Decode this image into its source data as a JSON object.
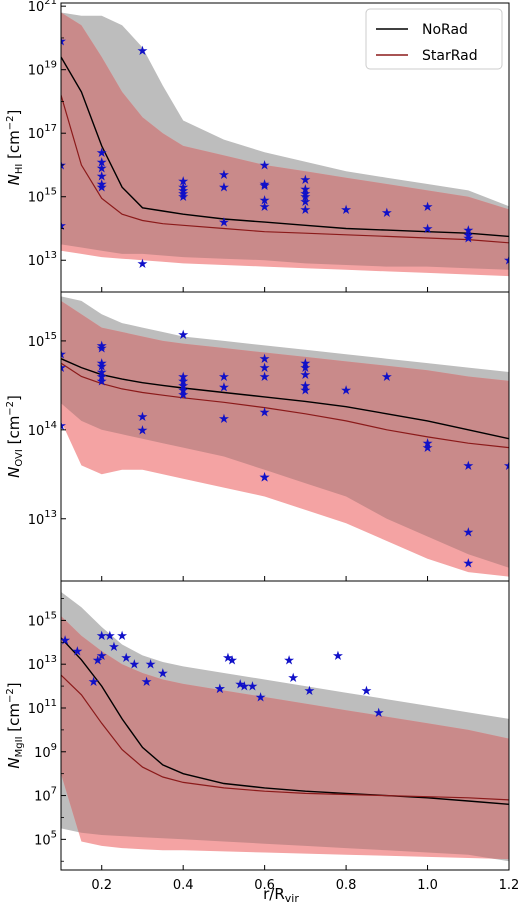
{
  "figure": {
    "xlabel_main": "r/R",
    "xlabel_sub": "vir",
    "legend": [
      {
        "label": "NoRad",
        "color": "#000000"
      },
      {
        "label": "StarRad",
        "color": "#8b1a1a"
      }
    ]
  },
  "colors": {
    "norad_band": "#bdbdbd",
    "starrad_band": "#f4a3a3",
    "overlap_band": "#c98a8a",
    "norad_line": "#000000",
    "starrad_line": "#8b1a1a",
    "obs_star": "#1010c8"
  },
  "chart_data": [
    {
      "type": "area",
      "ylabel_main": "N",
      "ylabel_sub": "HI",
      "ylabel_unit": " [cm",
      "ylabel_exp": "−2",
      "yscale": "log",
      "xlim": [
        0.1,
        1.2
      ],
      "ylim_log10": [
        12.0,
        21.1
      ],
      "yticks": [
        {
          "base": "10",
          "exp": "13",
          "log": 13
        },
        {
          "base": "10",
          "exp": "15",
          "log": 15
        },
        {
          "base": "10",
          "exp": "17",
          "log": 17
        },
        {
          "base": "10",
          "exp": "19",
          "log": 19
        },
        {
          "base": "10",
          "exp": "21",
          "log": 21
        }
      ],
      "x": [
        0.1,
        0.15,
        0.2,
        0.25,
        0.3,
        0.35,
        0.4,
        0.5,
        0.6,
        0.7,
        0.8,
        0.9,
        1.0,
        1.1,
        1.2
      ],
      "series": [
        {
          "name": "NoRad",
          "median_log10": [
            19.4,
            18.3,
            16.6,
            15.3,
            14.65,
            14.55,
            14.45,
            14.3,
            14.2,
            14.1,
            14.0,
            13.95,
            13.9,
            13.85,
            13.75
          ],
          "low_log10": [
            13.5,
            13.4,
            13.3,
            13.2,
            13.2,
            13.15,
            13.1,
            13.05,
            13.0,
            12.9,
            12.85,
            12.8,
            12.8,
            12.75,
            12.7
          ],
          "high_log10": [
            20.8,
            20.7,
            20.7,
            20.4,
            19.7,
            18.5,
            17.4,
            16.8,
            16.4,
            16.1,
            15.8,
            15.6,
            15.4,
            15.2,
            14.7
          ]
        },
        {
          "name": "StarRad",
          "median_log10": [
            18.2,
            16.0,
            14.95,
            14.45,
            14.25,
            14.15,
            14.1,
            14.0,
            13.9,
            13.85,
            13.8,
            13.75,
            13.7,
            13.65,
            13.55
          ],
          "low_log10": [
            13.3,
            13.2,
            13.1,
            13.05,
            13.0,
            12.95,
            12.9,
            12.85,
            12.8,
            12.75,
            12.7,
            12.65,
            12.6,
            12.55,
            12.5
          ],
          "high_log10": [
            20.8,
            20.4,
            19.4,
            18.3,
            17.5,
            17.0,
            16.6,
            16.3,
            16.0,
            15.8,
            15.6,
            15.4,
            15.2,
            15.0,
            14.6
          ]
        }
      ],
      "observations": {
        "x": [
          0.1,
          0.1,
          0.1,
          0.2,
          0.2,
          0.2,
          0.2,
          0.2,
          0.2,
          0.3,
          0.3,
          0.4,
          0.4,
          0.4,
          0.4,
          0.4,
          0.5,
          0.5,
          0.5,
          0.6,
          0.6,
          0.6,
          0.6,
          0.6,
          0.7,
          0.7,
          0.7,
          0.7,
          0.7,
          0.7,
          0.8,
          0.9,
          1.0,
          1.0,
          1.1,
          1.1,
          1.1,
          1.2
        ],
        "y_log10": [
          19.9,
          16.0,
          14.1,
          16.4,
          16.1,
          15.9,
          15.65,
          15.4,
          15.3,
          19.6,
          12.9,
          15.5,
          15.3,
          15.2,
          15.1,
          15.0,
          15.7,
          15.3,
          14.2,
          16.0,
          15.4,
          15.35,
          14.9,
          14.7,
          15.55,
          15.25,
          15.1,
          15.0,
          14.85,
          14.6,
          14.6,
          14.5,
          14.7,
          14.0,
          13.95,
          13.8,
          13.7,
          13.0
        ]
      }
    },
    {
      "type": "area",
      "ylabel_main": "N",
      "ylabel_sub": "OVI",
      "ylabel_unit": " [cm",
      "ylabel_exp": "−2",
      "yscale": "log",
      "xlim": [
        0.1,
        1.2
      ],
      "ylim_log10": [
        12.3,
        15.55
      ],
      "yticks": [
        {
          "base": "10",
          "exp": "13",
          "log": 13
        },
        {
          "base": "10",
          "exp": "14",
          "log": 14
        },
        {
          "base": "10",
          "exp": "15",
          "log": 15
        }
      ],
      "x": [
        0.1,
        0.15,
        0.2,
        0.25,
        0.3,
        0.35,
        0.4,
        0.5,
        0.6,
        0.7,
        0.8,
        0.9,
        1.0,
        1.1,
        1.2
      ],
      "series": [
        {
          "name": "NoRad",
          "median_log10": [
            14.8,
            14.7,
            14.62,
            14.57,
            14.53,
            14.5,
            14.47,
            14.42,
            14.37,
            14.32,
            14.26,
            14.18,
            14.1,
            14.0,
            13.9
          ],
          "low_log10": [
            14.3,
            14.1,
            14.0,
            13.95,
            13.9,
            13.85,
            13.8,
            13.7,
            13.55,
            13.4,
            13.25,
            13.0,
            12.8,
            12.6,
            12.45
          ],
          "high_log10": [
            15.5,
            15.45,
            15.3,
            15.2,
            15.15,
            15.1,
            15.05,
            15.0,
            14.95,
            14.9,
            14.85,
            14.8,
            14.75,
            14.7,
            14.65
          ]
        },
        {
          "name": "StarRad",
          "median_log10": [
            14.75,
            14.6,
            14.52,
            14.46,
            14.42,
            14.39,
            14.36,
            14.31,
            14.25,
            14.18,
            14.1,
            14.0,
            13.92,
            13.85,
            13.8
          ],
          "low_log10": [
            14.1,
            13.6,
            13.5,
            13.55,
            13.55,
            13.5,
            13.45,
            13.35,
            13.25,
            13.1,
            12.95,
            12.75,
            12.55,
            12.4,
            12.35
          ],
          "high_log10": [
            15.45,
            15.3,
            15.15,
            15.1,
            15.05,
            15.0,
            14.97,
            14.92,
            14.87,
            14.82,
            14.77,
            14.72,
            14.67,
            14.6,
            14.55
          ]
        }
      ],
      "observations": {
        "x": [
          0.1,
          0.1,
          0.1,
          0.2,
          0.2,
          0.2,
          0.2,
          0.2,
          0.2,
          0.2,
          0.3,
          0.3,
          0.4,
          0.4,
          0.4,
          0.4,
          0.4,
          0.4,
          0.5,
          0.5,
          0.5,
          0.6,
          0.6,
          0.6,
          0.6,
          0.6,
          0.6,
          0.7,
          0.7,
          0.7,
          0.7,
          0.7,
          0.8,
          0.9,
          1.0,
          1.0,
          1.1,
          1.1,
          1.1,
          1.2
        ],
        "y_log10": [
          14.85,
          14.7,
          14.05,
          14.95,
          14.92,
          14.75,
          14.72,
          14.65,
          14.6,
          14.55,
          14.15,
          14.0,
          15.07,
          14.6,
          14.55,
          14.5,
          14.45,
          14.4,
          14.6,
          14.48,
          14.13,
          14.8,
          14.7,
          14.6,
          14.2,
          13.47,
          13.47,
          14.75,
          14.7,
          14.62,
          14.5,
          14.45,
          14.45,
          14.6,
          13.85,
          13.8,
          13.6,
          12.85,
          12.5,
          13.6
        ]
      }
    },
    {
      "type": "area",
      "ylabel_main": "N",
      "ylabel_sub": "MgII",
      "ylabel_unit": " [cm",
      "ylabel_exp": "−2",
      "yscale": "log",
      "xlim": [
        0.1,
        1.2
      ],
      "ylim_log10": [
        3.6,
        16.8
      ],
      "yticks": [
        {
          "base": "10",
          "exp": "5",
          "log": 5
        },
        {
          "base": "10",
          "exp": "7",
          "log": 7
        },
        {
          "base": "10",
          "exp": "9",
          "log": 9
        },
        {
          "base": "10",
          "exp": "11",
          "log": 11
        },
        {
          "base": "10",
          "exp": "13",
          "log": 13
        },
        {
          "base": "10",
          "exp": "15",
          "log": 15
        }
      ],
      "x": [
        0.1,
        0.15,
        0.2,
        0.25,
        0.3,
        0.35,
        0.4,
        0.5,
        0.6,
        0.7,
        0.8,
        0.9,
        1.0,
        1.1,
        1.2
      ],
      "series": [
        {
          "name": "NoRad",
          "median_log10": [
            14.2,
            13.2,
            12.0,
            10.5,
            9.2,
            8.4,
            8.0,
            7.55,
            7.35,
            7.2,
            7.1,
            7.0,
            6.9,
            6.75,
            6.6
          ],
          "low_log10": [
            5.5,
            5.3,
            5.2,
            5.15,
            5.1,
            5.05,
            5.0,
            4.9,
            4.8,
            4.7,
            4.6,
            4.5,
            4.4,
            4.3,
            4.0
          ],
          "high_log10": [
            16.3,
            15.6,
            14.7,
            13.9,
            13.4,
            13.1,
            12.9,
            12.6,
            12.3,
            12.0,
            11.7,
            11.4,
            11.1,
            10.8,
            10.5
          ]
        },
        {
          "name": "StarRad",
          "median_log10": [
            12.5,
            11.6,
            10.3,
            9.1,
            8.3,
            7.85,
            7.6,
            7.35,
            7.2,
            7.1,
            7.05,
            7.0,
            6.95,
            6.9,
            6.8
          ],
          "low_log10": [
            8.0,
            4.9,
            4.7,
            4.6,
            4.55,
            4.5,
            4.5,
            4.45,
            4.4,
            4.35,
            4.3,
            4.25,
            4.2,
            4.15,
            4.1
          ],
          "high_log10": [
            15.2,
            14.3,
            13.6,
            13.0,
            12.6,
            12.3,
            12.1,
            11.8,
            11.5,
            11.2,
            10.9,
            10.6,
            10.3,
            10.0,
            9.6
          ]
        }
      ],
      "observations": {
        "x": [
          0.11,
          0.14,
          0.18,
          0.19,
          0.2,
          0.2,
          0.22,
          0.23,
          0.25,
          0.26,
          0.28,
          0.31,
          0.32,
          0.35,
          0.49,
          0.49,
          0.51,
          0.52,
          0.54,
          0.55,
          0.57,
          0.59,
          0.66,
          0.67,
          0.71,
          0.78,
          0.85,
          0.88
        ],
        "y_log10": [
          14.1,
          13.6,
          12.2,
          13.2,
          13.4,
          14.3,
          14.3,
          13.8,
          14.3,
          13.3,
          13.0,
          12.2,
          13.0,
          12.6,
          11.9,
          11.9,
          13.3,
          13.2,
          12.1,
          12.0,
          12.0,
          11.5,
          13.2,
          12.4,
          11.8,
          13.4,
          11.8,
          10.8
        ]
      }
    }
  ]
}
